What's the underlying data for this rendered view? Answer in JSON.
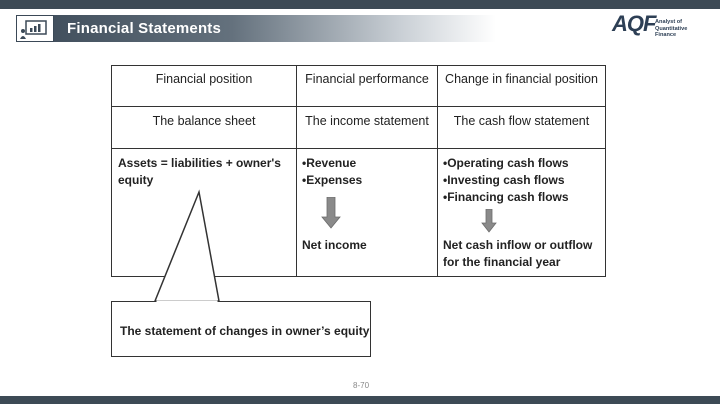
{
  "header": {
    "title": "Financial Statements",
    "logo_mark": "AQF",
    "logo_line1": "Analyst of",
    "logo_line2": "Quantitative Finance"
  },
  "table": {
    "headers": [
      "Financial position",
      "Financial performance",
      "Change in financial position"
    ],
    "statements": [
      "The balance sheet",
      "The income statement",
      "The cash flow statement"
    ],
    "balance": {
      "equation_line1": "Assets = liabilities + owner's",
      "equation_line2": "equity"
    },
    "income": {
      "items": [
        "•Revenue",
        "•Expenses"
      ],
      "result": "Net income"
    },
    "cashflow": {
      "items": [
        "•Operating cash flows",
        "•Investing cash flows",
        "•Financing cash flows"
      ],
      "result_line1": "Net cash inflow or outflow",
      "result_line2": "for the financial year"
    }
  },
  "callout": {
    "text": "The statement of changes in owner’s equity"
  },
  "footer": {
    "page_number": "8-70"
  }
}
